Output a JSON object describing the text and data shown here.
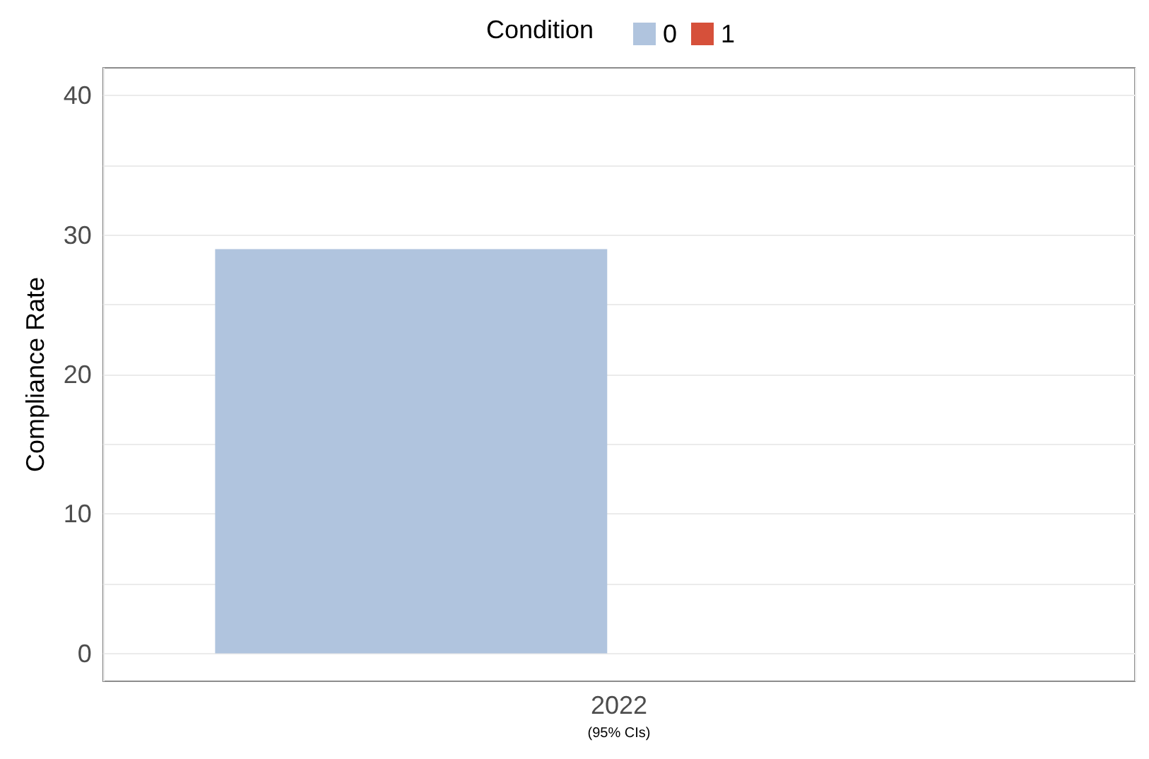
{
  "chart_data": {
    "type": "bar",
    "ylabel": "Compliance Rate",
    "xlabel": "(95% CIs)",
    "legend_title": "Condition",
    "legend": "top",
    "grid": true,
    "categories": [
      "2022"
    ],
    "series": [
      {
        "name": "0",
        "color": "#b0c4de",
        "values": [
          29
        ]
      },
      {
        "name": "1",
        "color": "#d6503a",
        "values": [
          0
        ]
      }
    ],
    "ylim": [
      -2,
      42
    ],
    "yticks": [
      0,
      {
        "value": 5,
        "label": null
      },
      10,
      {
        "value": 15,
        "label": null
      },
      20,
      {
        "value": 25,
        "label": null
      },
      30,
      {
        "value": 35,
        "label": null
      },
      40
    ]
  }
}
